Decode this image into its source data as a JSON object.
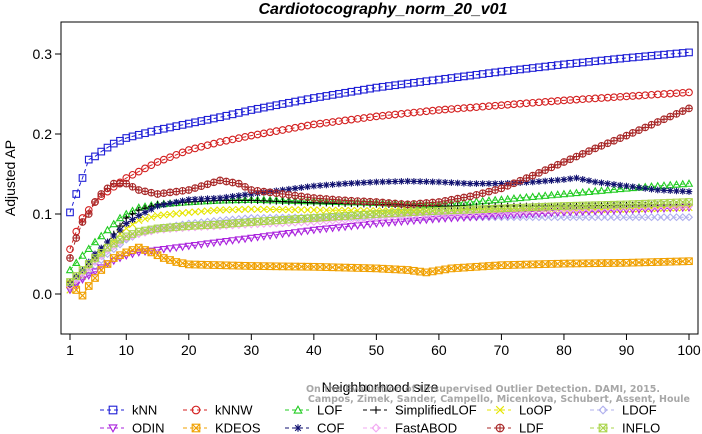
{
  "chart_data": {
    "type": "line",
    "title": "Cardiotocography_norm_20_v01",
    "xlabel": "Neighborhood size",
    "ylabel": "Adjusted AP",
    "xlim": [
      1,
      100
    ],
    "ylim": [
      -0.05,
      0.34
    ],
    "xticks": [
      1,
      10,
      20,
      30,
      40,
      50,
      60,
      70,
      80,
      90,
      100
    ],
    "yticks": [
      0.0,
      0.1,
      0.2,
      0.3
    ],
    "ytick_labels": [
      "0.0",
      "0.1",
      "0.2",
      "0.3"
    ],
    "legend_position": "bottom",
    "watermark": [
      "Campos, Zimek, Sander, Campello, Micenkova, Schubert, Assent, Houle",
      "On the Evaluation of Unsupervised Outlier Detection. DAMI, 2015."
    ],
    "series": [
      {
        "name": "kNN",
        "color": "#1f1fd6",
        "marker": "square",
        "points": [
          [
            1,
            0.102
          ],
          [
            2,
            0.125
          ],
          [
            3,
            0.145
          ],
          [
            4,
            0.168
          ],
          [
            5,
            0.172
          ],
          [
            6,
            0.178
          ],
          [
            7,
            0.183
          ],
          [
            8,
            0.188
          ],
          [
            10,
            0.195
          ],
          [
            15,
            0.205
          ],
          [
            20,
            0.213
          ],
          [
            25,
            0.221
          ],
          [
            30,
            0.23
          ],
          [
            40,
            0.245
          ],
          [
            50,
            0.258
          ],
          [
            60,
            0.268
          ],
          [
            70,
            0.278
          ],
          [
            80,
            0.287
          ],
          [
            90,
            0.295
          ],
          [
            100,
            0.302
          ]
        ]
      },
      {
        "name": "kNNW",
        "color": "#d42020",
        "marker": "circle",
        "points": [
          [
            1,
            0.056
          ],
          [
            2,
            0.078
          ],
          [
            3,
            0.095
          ],
          [
            4,
            0.105
          ],
          [
            5,
            0.115
          ],
          [
            6,
            0.122
          ],
          [
            7,
            0.128
          ],
          [
            8,
            0.134
          ],
          [
            10,
            0.145
          ],
          [
            15,
            0.165
          ],
          [
            20,
            0.18
          ],
          [
            25,
            0.19
          ],
          [
            30,
            0.198
          ],
          [
            40,
            0.212
          ],
          [
            50,
            0.222
          ],
          [
            60,
            0.23
          ],
          [
            70,
            0.236
          ],
          [
            80,
            0.242
          ],
          [
            90,
            0.247
          ],
          [
            100,
            0.252
          ]
        ]
      },
      {
        "name": "LOF",
        "color": "#22cc22",
        "marker": "triangle-up",
        "points": [
          [
            1,
            0.03
          ],
          [
            3,
            0.048
          ],
          [
            5,
            0.065
          ],
          [
            7,
            0.08
          ],
          [
            9,
            0.095
          ],
          [
            10,
            0.1
          ],
          [
            12,
            0.108
          ],
          [
            15,
            0.112
          ],
          [
            20,
            0.115
          ],
          [
            25,
            0.117
          ],
          [
            30,
            0.118
          ],
          [
            40,
            0.116
          ],
          [
            50,
            0.114
          ],
          [
            55,
            0.112
          ],
          [
            60,
            0.112
          ],
          [
            70,
            0.118
          ],
          [
            80,
            0.125
          ],
          [
            90,
            0.132
          ],
          [
            100,
            0.138
          ]
        ]
      },
      {
        "name": "SimplifiedLOF",
        "color": "#000000",
        "marker": "plus",
        "points": [
          [
            1,
            0.015
          ],
          [
            3,
            0.028
          ],
          [
            5,
            0.045
          ],
          [
            7,
            0.065
          ],
          [
            9,
            0.085
          ],
          [
            10,
            0.095
          ],
          [
            12,
            0.105
          ],
          [
            15,
            0.112
          ],
          [
            20,
            0.115
          ],
          [
            25,
            0.117
          ],
          [
            30,
            0.117
          ],
          [
            40,
            0.114
          ],
          [
            50,
            0.112
          ],
          [
            60,
            0.11
          ],
          [
            70,
            0.11
          ],
          [
            80,
            0.11
          ],
          [
            90,
            0.111
          ],
          [
            100,
            0.112
          ]
        ]
      },
      {
        "name": "LoOP",
        "color": "#e6e600",
        "marker": "x",
        "points": [
          [
            1,
            0.005
          ],
          [
            3,
            0.022
          ],
          [
            5,
            0.04
          ],
          [
            7,
            0.058
          ],
          [
            9,
            0.075
          ],
          [
            10,
            0.082
          ],
          [
            12,
            0.092
          ],
          [
            15,
            0.098
          ],
          [
            20,
            0.102
          ],
          [
            25,
            0.105
          ],
          [
            30,
            0.106
          ],
          [
            40,
            0.105
          ],
          [
            50,
            0.104
          ],
          [
            60,
            0.104
          ],
          [
            70,
            0.104
          ],
          [
            80,
            0.105
          ],
          [
            90,
            0.106
          ],
          [
            100,
            0.108
          ]
        ]
      },
      {
        "name": "LDOF",
        "color": "#b0b0ee",
        "marker": "diamond",
        "points": [
          [
            1,
            0.008
          ],
          [
            3,
            0.02
          ],
          [
            5,
            0.035
          ],
          [
            7,
            0.05
          ],
          [
            9,
            0.062
          ],
          [
            10,
            0.068
          ],
          [
            12,
            0.075
          ],
          [
            15,
            0.082
          ],
          [
            20,
            0.088
          ],
          [
            25,
            0.092
          ],
          [
            30,
            0.095
          ],
          [
            40,
            0.096
          ],
          [
            50,
            0.096
          ],
          [
            60,
            0.096
          ],
          [
            70,
            0.096
          ],
          [
            80,
            0.096
          ],
          [
            90,
            0.096
          ],
          [
            100,
            0.096
          ]
        ]
      },
      {
        "name": "ODIN",
        "color": "#aa22dd",
        "marker": "triangle-down",
        "points": [
          [
            1,
            0.005
          ],
          [
            3,
            0.018
          ],
          [
            5,
            0.028
          ],
          [
            7,
            0.038
          ],
          [
            9,
            0.045
          ],
          [
            10,
            0.048
          ],
          [
            12,
            0.052
          ],
          [
            15,
            0.055
          ],
          [
            20,
            0.06
          ],
          [
            25,
            0.065
          ],
          [
            30,
            0.07
          ],
          [
            40,
            0.08
          ],
          [
            50,
            0.088
          ],
          [
            60,
            0.094
          ],
          [
            70,
            0.098
          ],
          [
            80,
            0.102
          ],
          [
            90,
            0.105
          ],
          [
            100,
            0.108
          ]
        ]
      },
      {
        "name": "KDEOS",
        "color": "#f0a000",
        "marker": "x-square",
        "points": [
          [
            1,
            0.012
          ],
          [
            2,
            0.005
          ],
          [
            3,
            -0.002
          ],
          [
            4,
            0.01
          ],
          [
            5,
            0.02
          ],
          [
            6,
            0.03
          ],
          [
            8,
            0.045
          ],
          [
            10,
            0.052
          ],
          [
            12,
            0.058
          ],
          [
            14,
            0.052
          ],
          [
            16,
            0.045
          ],
          [
            18,
            0.04
          ],
          [
            20,
            0.037
          ],
          [
            25,
            0.036
          ],
          [
            30,
            0.035
          ],
          [
            40,
            0.034
          ],
          [
            50,
            0.032
          ],
          [
            55,
            0.03
          ],
          [
            58,
            0.027
          ],
          [
            62,
            0.032
          ],
          [
            70,
            0.036
          ],
          [
            80,
            0.038
          ],
          [
            90,
            0.039
          ],
          [
            100,
            0.041
          ]
        ]
      },
      {
        "name": "COF",
        "color": "#101070",
        "marker": "asterisk",
        "points": [
          [
            1,
            0.012
          ],
          [
            3,
            0.03
          ],
          [
            5,
            0.05
          ],
          [
            7,
            0.065
          ],
          [
            9,
            0.08
          ],
          [
            10,
            0.088
          ],
          [
            12,
            0.098
          ],
          [
            15,
            0.11
          ],
          [
            20,
            0.118
          ],
          [
            25,
            0.12
          ],
          [
            30,
            0.125
          ],
          [
            35,
            0.13
          ],
          [
            40,
            0.135
          ],
          [
            45,
            0.138
          ],
          [
            50,
            0.14
          ],
          [
            55,
            0.141
          ],
          [
            60,
            0.14
          ],
          [
            65,
            0.138
          ],
          [
            70,
            0.138
          ],
          [
            75,
            0.14
          ],
          [
            80,
            0.143
          ],
          [
            82,
            0.145
          ],
          [
            85,
            0.14
          ],
          [
            90,
            0.135
          ],
          [
            95,
            0.13
          ],
          [
            100,
            0.128
          ]
        ]
      },
      {
        "name": "FastABOD",
        "color": "#f2a8f2",
        "marker": "diamond",
        "points": [
          [
            1,
            0.01
          ],
          [
            3,
            0.025
          ],
          [
            5,
            0.04
          ],
          [
            7,
            0.055
          ],
          [
            9,
            0.065
          ],
          [
            10,
            0.07
          ],
          [
            12,
            0.075
          ],
          [
            15,
            0.08
          ],
          [
            20,
            0.083
          ],
          [
            25,
            0.085
          ],
          [
            30,
            0.087
          ],
          [
            40,
            0.09
          ],
          [
            50,
            0.095
          ],
          [
            60,
            0.098
          ],
          [
            70,
            0.102
          ],
          [
            80,
            0.105
          ],
          [
            90,
            0.108
          ],
          [
            100,
            0.11
          ]
        ]
      },
      {
        "name": "LDF",
        "color": "#a82828",
        "marker": "circle-plus",
        "points": [
          [
            1,
            0.045
          ],
          [
            2,
            0.07
          ],
          [
            3,
            0.09
          ],
          [
            4,
            0.1
          ],
          [
            5,
            0.115
          ],
          [
            6,
            0.125
          ],
          [
            7,
            0.132
          ],
          [
            8,
            0.138
          ],
          [
            10,
            0.138
          ],
          [
            12,
            0.13
          ],
          [
            15,
            0.125
          ],
          [
            20,
            0.13
          ],
          [
            25,
            0.142
          ],
          [
            28,
            0.138
          ],
          [
            30,
            0.13
          ],
          [
            35,
            0.125
          ],
          [
            40,
            0.12
          ],
          [
            45,
            0.117
          ],
          [
            50,
            0.115
          ],
          [
            55,
            0.112
          ],
          [
            60,
            0.115
          ],
          [
            65,
            0.122
          ],
          [
            70,
            0.132
          ],
          [
            75,
            0.148
          ],
          [
            80,
            0.165
          ],
          [
            85,
            0.182
          ],
          [
            90,
            0.198
          ],
          [
            95,
            0.215
          ],
          [
            100,
            0.232
          ]
        ]
      },
      {
        "name": "INFLO",
        "color": "#aad44a",
        "marker": "x-square",
        "points": [
          [
            1,
            0.015
          ],
          [
            3,
            0.03
          ],
          [
            5,
            0.045
          ],
          [
            7,
            0.058
          ],
          [
            9,
            0.068
          ],
          [
            10,
            0.072
          ],
          [
            12,
            0.078
          ],
          [
            15,
            0.082
          ],
          [
            20,
            0.085
          ],
          [
            25,
            0.087
          ],
          [
            30,
            0.09
          ],
          [
            40,
            0.095
          ],
          [
            50,
            0.1
          ],
          [
            60,
            0.104
          ],
          [
            70,
            0.107
          ],
          [
            80,
            0.11
          ],
          [
            90,
            0.112
          ],
          [
            100,
            0.115
          ]
        ]
      }
    ],
    "legend_rows": [
      [
        "kNN",
        "kNNW",
        "LOF",
        "SimplifiedLOF",
        "LoOP",
        "LDOF"
      ],
      [
        "ODIN",
        "KDEOS",
        "COF",
        "FastABOD",
        "LDF",
        "INFLO"
      ]
    ]
  }
}
